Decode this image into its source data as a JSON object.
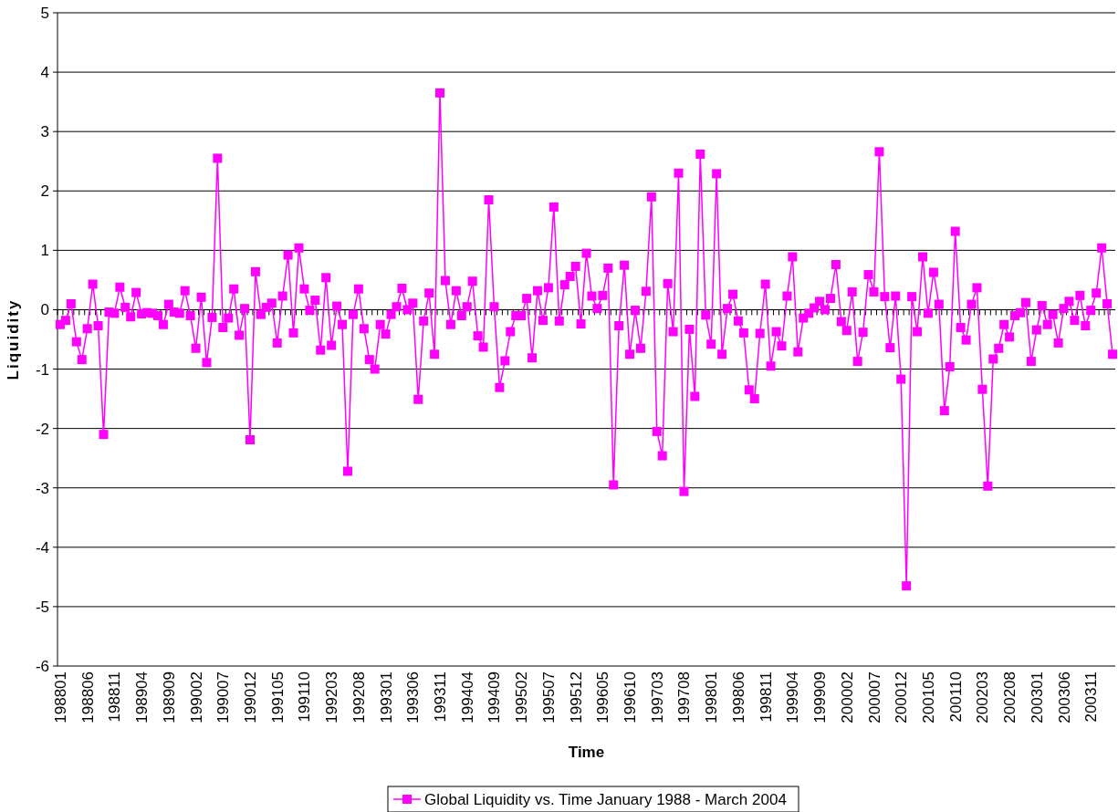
{
  "chart_data": {
    "type": "line",
    "xlabel": "Time",
    "ylabel": "Liquidity",
    "categories": [
      "198801",
      null,
      null,
      null,
      null,
      "198806",
      null,
      null,
      null,
      null,
      "198811",
      null,
      null,
      null,
      null,
      "198904",
      null,
      null,
      null,
      null,
      "198909",
      null,
      null,
      null,
      null,
      "199002",
      null,
      null,
      null,
      null,
      "199007",
      null,
      null,
      null,
      null,
      "199012",
      null,
      null,
      null,
      null,
      "199105",
      null,
      null,
      null,
      null,
      "199110",
      null,
      null,
      null,
      null,
      "199203",
      null,
      null,
      null,
      null,
      "199208",
      null,
      null,
      null,
      null,
      "199301",
      null,
      null,
      null,
      null,
      "199306",
      null,
      null,
      null,
      null,
      "199311",
      null,
      null,
      null,
      null,
      "199404",
      null,
      null,
      null,
      null,
      "199409",
      null,
      null,
      null,
      null,
      "199502",
      null,
      null,
      null,
      null,
      "199507",
      null,
      null,
      null,
      null,
      "199512",
      null,
      null,
      null,
      null,
      "199605",
      null,
      null,
      null,
      null,
      "199610",
      null,
      null,
      null,
      null,
      "199703",
      null,
      null,
      null,
      null,
      "199708",
      null,
      null,
      null,
      null,
      "199801",
      null,
      null,
      null,
      null,
      "199806",
      null,
      null,
      null,
      null,
      "199811",
      null,
      null,
      null,
      null,
      "199904",
      null,
      null,
      null,
      null,
      "199909",
      null,
      null,
      null,
      null,
      "200002",
      null,
      null,
      null,
      null,
      "200007",
      null,
      null,
      null,
      null,
      "200012",
      null,
      null,
      null,
      null,
      "200105",
      null,
      null,
      null,
      null,
      "200110",
      null,
      null,
      null,
      null,
      "200203",
      null,
      null,
      null,
      null,
      "200208",
      null,
      null,
      null,
      null,
      "200301",
      null,
      null,
      null,
      null,
      "200306",
      null,
      null,
      null,
      null,
      "200311",
      null,
      null,
      null,
      null
    ],
    "series": [
      {
        "name": "Global Liquidity vs. Time January 1988 - March 2004",
        "color": "#ff00ff",
        "values": [
          -0.25,
          -0.18,
          0.1,
          -0.54,
          -0.84,
          -0.32,
          0.43,
          -0.27,
          -2.1,
          -0.04,
          -0.06,
          0.38,
          0.04,
          -0.12,
          0.29,
          -0.07,
          -0.05,
          -0.06,
          -0.1,
          -0.25,
          0.09,
          -0.04,
          -0.06,
          0.32,
          -0.1,
          -0.65,
          0.21,
          -0.89,
          -0.13,
          2.55,
          -0.3,
          -0.14,
          0.35,
          -0.43,
          0.02,
          -2.19,
          0.64,
          -0.08,
          0.04,
          0.11,
          -0.56,
          0.23,
          0.92,
          -0.39,
          1.04,
          0.35,
          -0.01,
          0.16,
          -0.68,
          0.54,
          -0.6,
          0.06,
          -0.25,
          -2.72,
          -0.08,
          0.35,
          -0.32,
          -0.84,
          -1.0,
          -0.25,
          -0.41,
          -0.08,
          0.05,
          0.36,
          0.0,
          0.11,
          -1.51,
          -0.19,
          0.28,
          -0.75,
          3.65,
          0.49,
          -0.25,
          0.32,
          -0.1,
          0.05,
          0.48,
          -0.44,
          -0.63,
          1.85,
          0.05,
          -1.31,
          -0.86,
          -0.37,
          -0.1,
          -0.1,
          0.19,
          -0.81,
          0.32,
          -0.18,
          0.37,
          1.73,
          -0.19,
          0.42,
          0.56,
          0.73,
          -0.24,
          0.95,
          0.23,
          0.02,
          0.24,
          0.7,
          -2.95,
          -0.27,
          0.75,
          -0.75,
          -0.01,
          -0.65,
          0.31,
          1.9,
          -2.05,
          -2.46,
          0.44,
          -0.37,
          2.3,
          -3.06,
          -0.33,
          -1.46,
          2.62,
          -0.09,
          -0.58,
          2.29,
          -0.75,
          0.02,
          0.26,
          -0.19,
          -0.39,
          -1.35,
          -1.5,
          -0.4,
          0.43,
          -0.95,
          -0.37,
          -0.61,
          0.23,
          0.89,
          -0.71,
          -0.14,
          -0.06,
          0.03,
          0.14,
          0.0,
          0.19,
          0.76,
          -0.2,
          -0.35,
          0.3,
          -0.87,
          -0.38,
          0.59,
          0.3,
          2.66,
          0.22,
          -0.64,
          0.23,
          -1.17,
          -4.65,
          0.22,
          -0.37,
          0.89,
          -0.06,
          0.63,
          0.09,
          -1.7,
          -0.96,
          1.32,
          -0.3,
          -0.51,
          0.09,
          0.37,
          -1.34,
          -2.97,
          -0.83,
          -0.65,
          -0.25,
          -0.46,
          -0.1,
          -0.05,
          0.12,
          -0.87,
          -0.34,
          0.07,
          -0.25,
          -0.08,
          -0.56,
          0.02,
          0.14,
          -0.18,
          0.24,
          -0.27,
          -0.01,
          0.28,
          1.04,
          0.1,
          -0.75
        ]
      }
    ],
    "ylim": [
      -6,
      5
    ],
    "yticks": [
      -6,
      -5,
      -4,
      -3,
      -2,
      -1,
      0,
      1,
      2,
      3,
      4,
      5
    ],
    "grid": "y",
    "legend": "bottom",
    "marker": "square"
  }
}
